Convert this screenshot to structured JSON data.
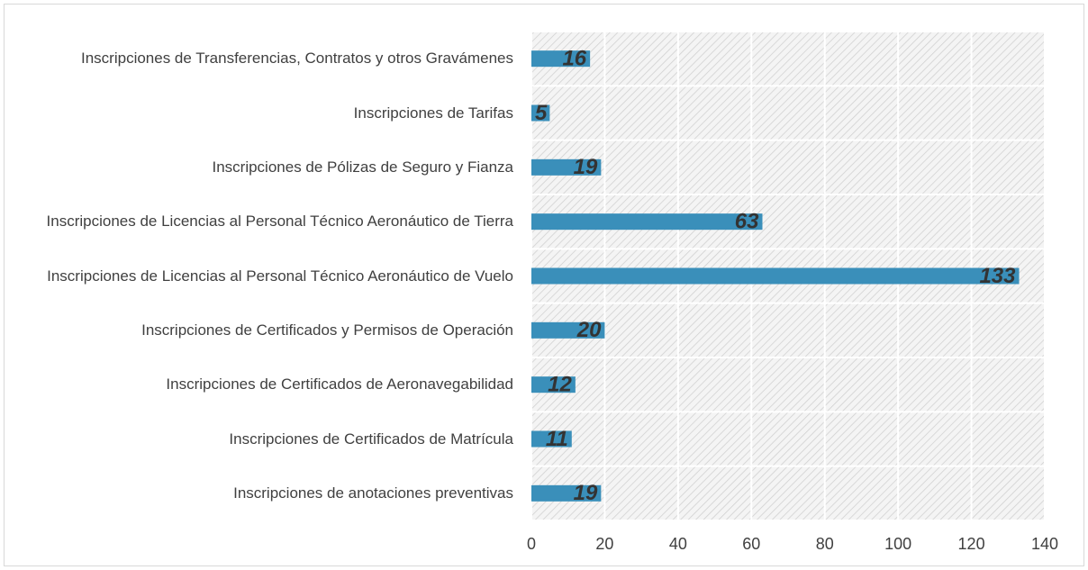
{
  "chart_data": {
    "type": "barh",
    "categories": [
      "Inscripciones de Transferencias, Contratos y otros Gravámenes",
      "Inscripciones de Tarifas",
      "Inscripciones de Pólizas de Seguro y Fianza",
      "Inscripciones de Licencias al Personal Técnico Aeronáutico de Tierra",
      "Inscripciones de Licencias al Personal Técnico Aeronáutico de Vuelo",
      "Inscripciones de Certificados y Permisos de Operación",
      "Inscripciones de Certificados de Aeronavegabilidad",
      "Inscripciones de Certificados de Matrícula",
      "Inscripciones de anotaciones preventivas"
    ],
    "values": [
      16,
      5,
      19,
      63,
      133,
      20,
      12,
      11,
      19
    ],
    "color": "#3a8fba",
    "xlim": [
      0,
      140
    ],
    "xticks": [
      0,
      20,
      40,
      60,
      80,
      100,
      120,
      140
    ],
    "grid": true
  }
}
